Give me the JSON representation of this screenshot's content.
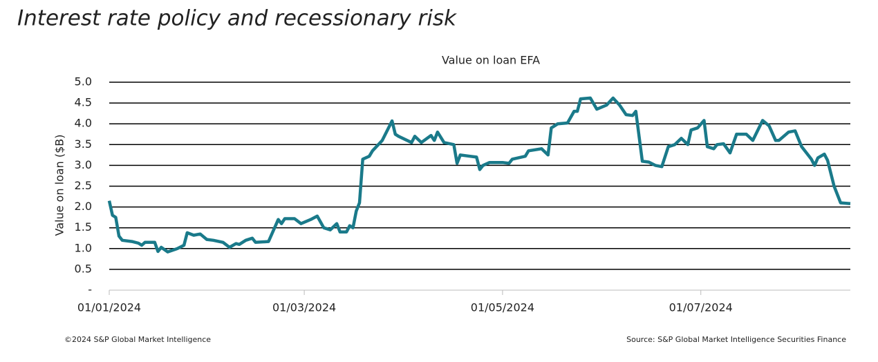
{
  "heading": "Interest rate policy and recessionary risk",
  "chart_data": {
    "type": "line",
    "title": "Value on loan EFA",
    "ylabel": "Value on loan ($B)",
    "x": [
      "2024-01-01",
      "2024-01-02",
      "2024-01-03",
      "2024-01-04",
      "2024-01-05",
      "2024-01-08",
      "2024-01-10",
      "2024-01-11",
      "2024-01-12",
      "2024-01-15",
      "2024-01-16",
      "2024-01-17",
      "2024-01-19",
      "2024-01-22",
      "2024-01-24",
      "2024-01-25",
      "2024-01-27",
      "2024-01-29",
      "2024-01-31",
      "2024-02-02",
      "2024-02-05",
      "2024-02-07",
      "2024-02-09",
      "2024-02-10",
      "2024-02-12",
      "2024-02-14",
      "2024-02-15",
      "2024-02-19",
      "2024-02-22",
      "2024-02-23",
      "2024-02-24",
      "2024-02-27",
      "2024-02-29",
      "2024-03-03",
      "2024-03-05",
      "2024-03-07",
      "2024-03-09",
      "2024-03-11",
      "2024-03-12",
      "2024-03-14",
      "2024-03-15",
      "2024-03-16",
      "2024-03-17",
      "2024-03-18",
      "2024-03-19",
      "2024-03-21",
      "2024-03-22",
      "2024-03-25",
      "2024-03-28",
      "2024-03-29",
      "2024-03-30",
      "2024-04-03",
      "2024-04-04",
      "2024-04-06",
      "2024-04-09",
      "2024-04-10",
      "2024-04-11",
      "2024-04-13",
      "2024-04-16",
      "2024-04-17",
      "2024-04-18",
      "2024-04-21",
      "2024-04-23",
      "2024-04-24",
      "2024-04-25",
      "2024-04-27",
      "2024-05-01",
      "2024-05-03",
      "2024-05-04",
      "2024-05-08",
      "2024-05-09",
      "2024-05-13",
      "2024-05-15",
      "2024-05-16",
      "2024-05-18",
      "2024-05-21",
      "2024-05-23",
      "2024-05-24",
      "2024-05-25",
      "2024-05-28",
      "2024-05-30",
      "2024-06-02",
      "2024-06-04",
      "2024-06-06",
      "2024-06-08",
      "2024-06-10",
      "2024-06-11",
      "2024-06-13",
      "2024-06-15",
      "2024-06-17",
      "2024-06-19",
      "2024-06-21",
      "2024-06-23",
      "2024-06-25",
      "2024-06-27",
      "2024-06-28",
      "2024-06-30",
      "2024-07-02",
      "2024-07-03",
      "2024-07-05",
      "2024-07-06",
      "2024-07-08",
      "2024-07-10",
      "2024-07-12",
      "2024-07-15",
      "2024-07-17",
      "2024-07-20",
      "2024-07-22",
      "2024-07-24",
      "2024-07-25",
      "2024-07-28",
      "2024-07-30",
      "2024-08-01",
      "2024-08-04",
      "2024-08-05",
      "2024-08-06",
      "2024-08-08",
      "2024-08-09",
      "2024-08-11",
      "2024-08-13",
      "2024-08-16"
    ],
    "series": [
      {
        "name": "EFA",
        "color": "#1a7a8a",
        "values": [
          2.15,
          1.8,
          1.75,
          1.3,
          1.2,
          1.17,
          1.13,
          1.08,
          1.15,
          1.15,
          0.93,
          1.03,
          0.92,
          1.0,
          1.08,
          1.38,
          1.32,
          1.35,
          1.22,
          1.2,
          1.15,
          1.03,
          1.12,
          1.1,
          1.2,
          1.25,
          1.15,
          1.17,
          1.7,
          1.6,
          1.72,
          1.72,
          1.6,
          1.7,
          1.78,
          1.5,
          1.45,
          1.6,
          1.4,
          1.4,
          1.55,
          1.5,
          1.9,
          2.1,
          3.15,
          3.22,
          3.35,
          3.6,
          4.07,
          3.75,
          3.7,
          3.55,
          3.7,
          3.55,
          3.72,
          3.6,
          3.8,
          3.55,
          3.5,
          3.05,
          3.25,
          3.22,
          3.2,
          2.9,
          3.0,
          3.07,
          3.07,
          3.05,
          3.15,
          3.22,
          3.35,
          3.4,
          3.25,
          3.9,
          4.0,
          4.02,
          4.3,
          4.3,
          4.6,
          4.62,
          4.35,
          4.45,
          4.62,
          4.45,
          4.22,
          4.2,
          4.3,
          3.1,
          3.08,
          3.0,
          2.97,
          3.45,
          3.5,
          3.65,
          3.5,
          3.85,
          3.9,
          4.08,
          3.45,
          3.4,
          3.5,
          3.52,
          3.3,
          3.75,
          3.75,
          3.6,
          4.08,
          3.95,
          3.6,
          3.6,
          3.8,
          3.83,
          3.45,
          3.15,
          3.0,
          3.18,
          3.27,
          3.12,
          2.5,
          2.1,
          2.08
        ]
      }
    ],
    "xlim": [
      "2024-01-01",
      "2024-08-16"
    ],
    "xticks": [
      {
        "value": "2024-01-01",
        "label": "01/01/2024"
      },
      {
        "value": "2024-03-01",
        "label": "01/03/2024"
      },
      {
        "value": "2024-05-01",
        "label": "01/05/2024"
      },
      {
        "value": "2024-07-01",
        "label": "01/07/2024"
      }
    ],
    "ylim": [
      0,
      5
    ],
    "yticks": [
      {
        "value": 0,
        "label": "-"
      },
      0.5,
      {
        "value": 1,
        "label": "1.0"
      },
      1.5,
      {
        "value": 2,
        "label": "2.0"
      },
      2.5,
      {
        "value": 3,
        "label": "3.0"
      },
      3.5,
      {
        "value": 4,
        "label": "4.0"
      },
      4.5,
      {
        "value": 5,
        "label": "5.0"
      }
    ],
    "grid": true
  },
  "footer": {
    "left": "©2024 S&P Global Market Intelligence",
    "right": "Source: S&P Global Market Intelligence Securities Finance"
  }
}
